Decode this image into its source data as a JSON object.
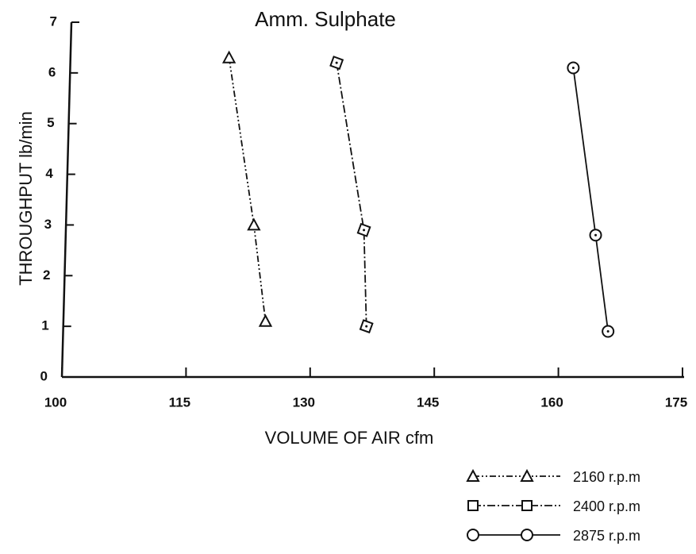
{
  "chart_data": {
    "type": "line",
    "title": "Amm. Sulphate",
    "xlabel": "VOLUME OF AIR cfm",
    "ylabel": "THROUGHPUT lb/min",
    "xlim": [
      100,
      175
    ],
    "xticks": [
      100,
      115,
      130,
      145,
      160,
      175
    ],
    "ylim": [
      0,
      7
    ],
    "yticks": [
      0,
      1,
      2,
      3,
      4,
      5,
      6,
      7
    ],
    "grid": false,
    "legend": "lower right",
    "series": [
      {
        "name": "2160 r.p.m",
        "color": "#111111",
        "marker": "triangle",
        "linestyle": "dashdotdot",
        "x": [
          120.2,
          123.2,
          124.6
        ],
        "values": [
          6.3,
          3.0,
          1.1
        ]
      },
      {
        "name": "2400 r.p.m",
        "color": "#111111",
        "marker": "square",
        "linestyle": "dashdot",
        "x": [
          133.2,
          136.5,
          136.8
        ],
        "values": [
          6.2,
          2.9,
          1.0
        ]
      },
      {
        "name": "2875 r.p.m",
        "color": "#111111",
        "marker": "circle",
        "linestyle": "solid",
        "x": [
          161.8,
          164.5,
          166.0
        ],
        "values": [
          6.1,
          2.8,
          0.9
        ]
      }
    ]
  }
}
